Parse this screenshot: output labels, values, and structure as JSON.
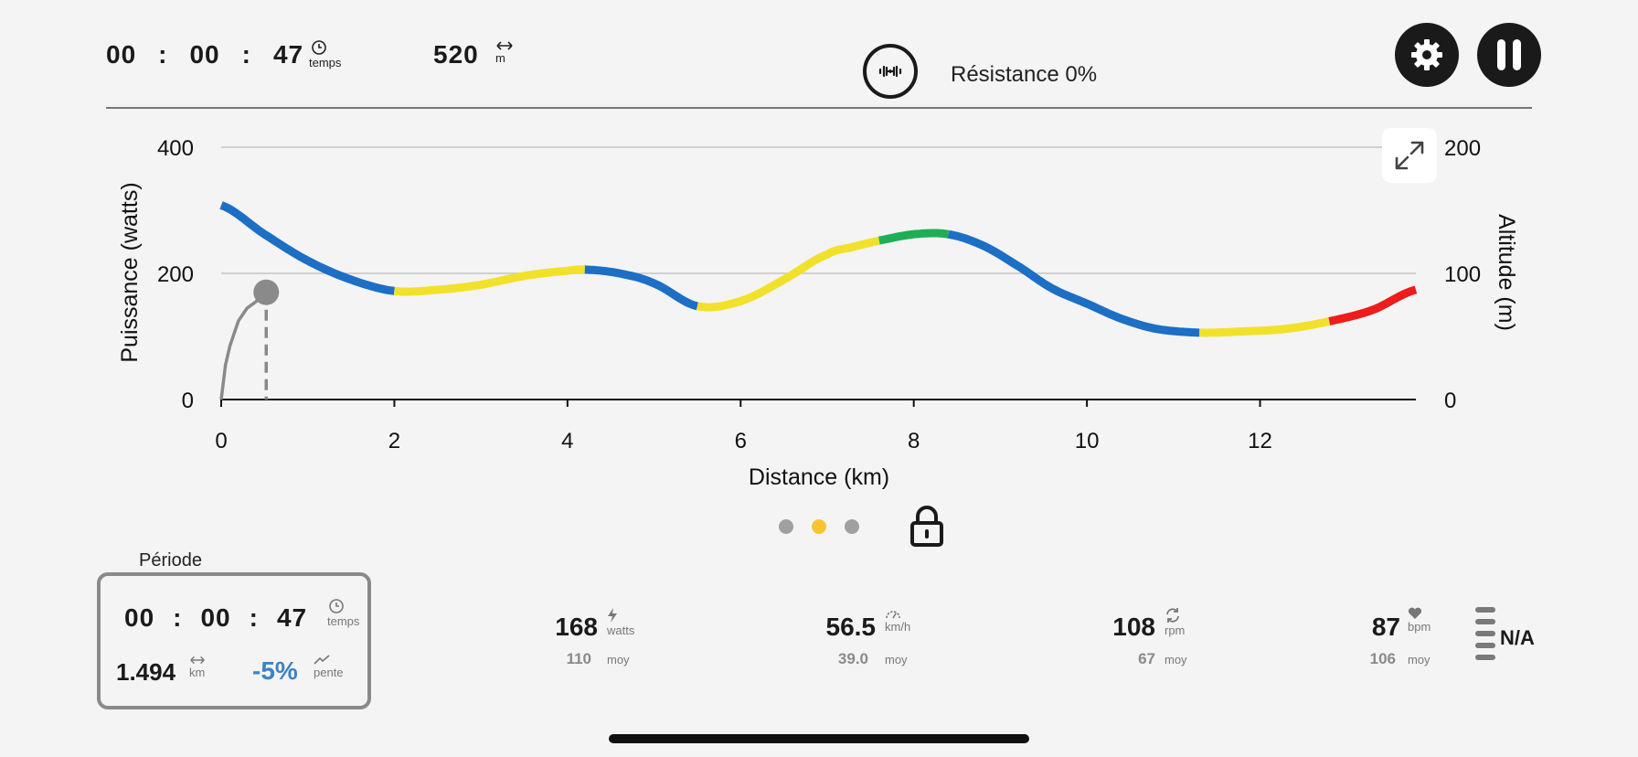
{
  "header": {
    "elapsed": {
      "hh": "00",
      "mm": "00",
      "ss": "47",
      "sep": ":",
      "unit": "temps",
      "icon": "clock-icon"
    },
    "distance": {
      "value": "520",
      "unit": "m",
      "icon": "arrows-horizontal-icon"
    },
    "resistance": {
      "label": "Résistance 0%",
      "icon": "dumbbell-icon"
    },
    "settings_icon": "gear-icon",
    "pause_icon": "pause-icon"
  },
  "chart_data": {
    "type": "line",
    "xlabel": "Distance (km)",
    "ylabel_left": "Puissance (watts)",
    "ylabel_right": "Altitude (m)",
    "xlim": [
      0,
      13.8
    ],
    "ylim_left": [
      0,
      400
    ],
    "ylim_right": [
      0,
      200
    ],
    "x_ticks": [
      0,
      2,
      4,
      6,
      8,
      10,
      12
    ],
    "y_ticks_left": [
      0,
      200,
      400
    ],
    "y_ticks_right": [
      0,
      100,
      200
    ],
    "grid": true,
    "altitude_profile": {
      "name": "Altitude",
      "x": [
        0,
        0.5,
        1.0,
        1.5,
        2.0,
        2.5,
        3.0,
        3.5,
        4.0,
        4.2,
        4.6,
        5.0,
        5.5,
        6.0,
        6.5,
        7.0,
        7.3,
        7.6,
        8.0,
        8.4,
        8.8,
        9.2,
        9.6,
        10.0,
        10.4,
        10.8,
        11.3,
        11.8,
        12.3,
        12.8,
        13.3,
        13.8
      ],
      "y": [
        154,
        131,
        110,
        95,
        86,
        87,
        91,
        98,
        102,
        103,
        100,
        92,
        74,
        78,
        95,
        115,
        121,
        126,
        131,
        131,
        122,
        106,
        88,
        76,
        64,
        56,
        53,
        54,
        56,
        62,
        71,
        87
      ],
      "segments": [
        {
          "from": 0.0,
          "to": 2.0,
          "zone": "blue"
        },
        {
          "from": 2.0,
          "to": 4.2,
          "zone": "yellow"
        },
        {
          "from": 4.2,
          "to": 5.5,
          "zone": "blue"
        },
        {
          "from": 5.5,
          "to": 7.6,
          "zone": "yellow"
        },
        {
          "from": 7.6,
          "to": 8.4,
          "zone": "green"
        },
        {
          "from": 8.4,
          "to": 11.3,
          "zone": "blue"
        },
        {
          "from": 11.3,
          "to": 12.8,
          "zone": "yellow"
        },
        {
          "from": 12.8,
          "to": 13.8,
          "zone": "red"
        }
      ]
    },
    "power_trace": {
      "name": "Puissance",
      "x": [
        0,
        0.05,
        0.1,
        0.2,
        0.3,
        0.4,
        0.52
      ],
      "y": [
        0,
        55,
        85,
        125,
        145,
        155,
        170
      ]
    },
    "current_position": {
      "x": 0.52,
      "power": 170
    },
    "zone_colors": {
      "blue": "#1c6fc4",
      "yellow": "#f2e12b",
      "green": "#1fae55",
      "red": "#ee1c1c"
    },
    "expand_icon": "expand-icon"
  },
  "pager": {
    "count": 3,
    "active": 1,
    "active_color": "#f7c531",
    "lock_icon": "lock-icon"
  },
  "period": {
    "title": "Période",
    "time": {
      "hh": "00",
      "mm": "00",
      "ss": "47",
      "sep": ":",
      "unit": "temps"
    },
    "distance": {
      "value": "1.494",
      "unit": "km"
    },
    "slope": {
      "value": "-5%",
      "unit": "pente",
      "color": "#3b83c6"
    }
  },
  "metrics": [
    {
      "name": "power",
      "value": "168",
      "unit": "watts",
      "avg": "110",
      "avg_label": "moy",
      "icon": "bolt-icon"
    },
    {
      "name": "speed",
      "value": "56.5",
      "unit": "km/h",
      "avg": "39.0",
      "avg_label": "moy",
      "icon": "speedometer-icon"
    },
    {
      "name": "cadence",
      "value": "108",
      "unit": "rpm",
      "avg": "67",
      "avg_label": "moy",
      "icon": "refresh-icon"
    },
    {
      "name": "heartrate",
      "value": "87",
      "unit": "bpm",
      "avg": "106",
      "avg_label": "moy",
      "icon": "heart-icon"
    }
  ],
  "hr_zone": {
    "label": "N/A"
  }
}
